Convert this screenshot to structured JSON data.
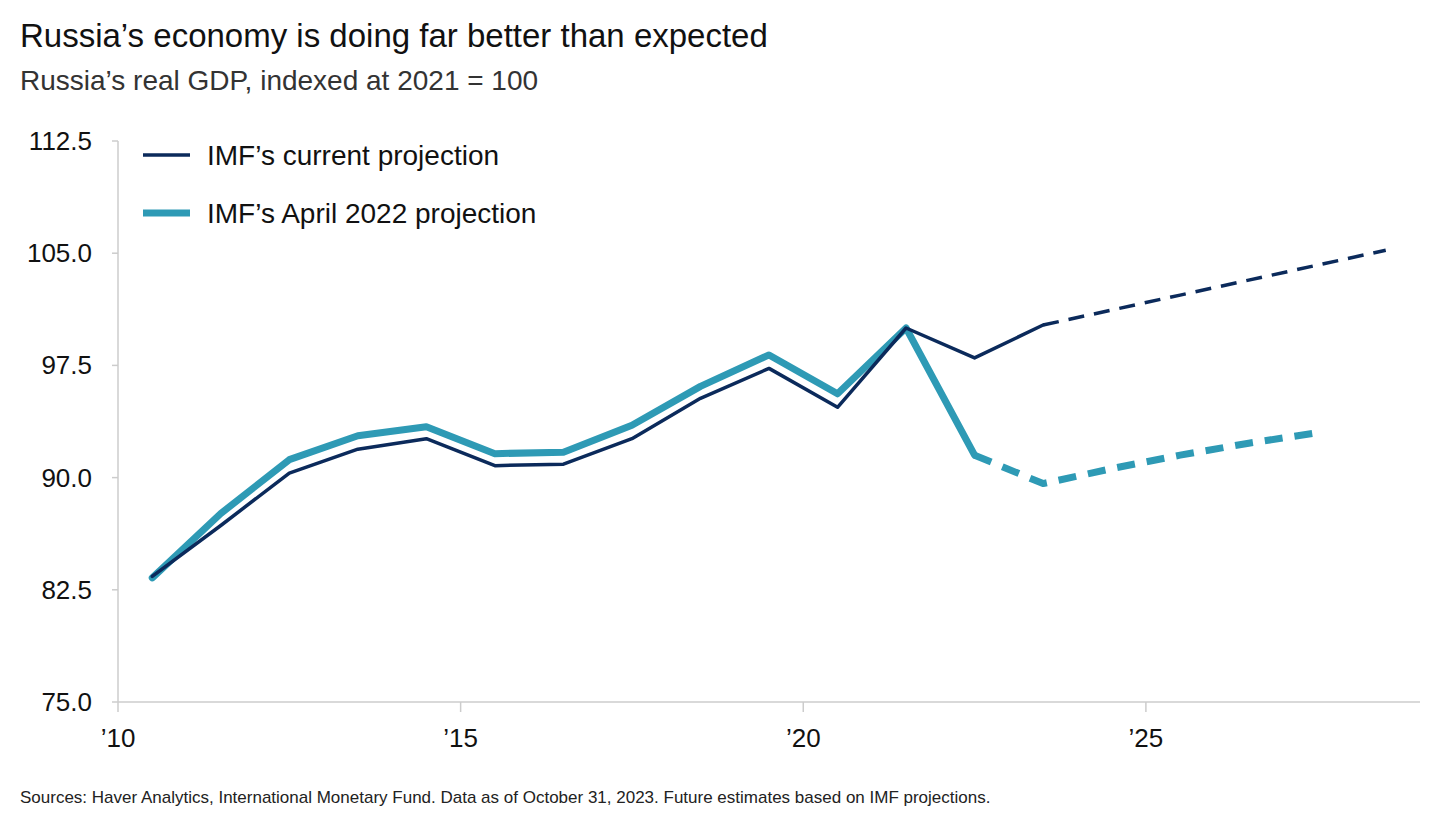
{
  "chart_data": {
    "type": "line",
    "title": "Russia’s economy is doing far better than expected",
    "subtitle": "Russia’s real GDP, indexed at 2021 = 100",
    "source": "Sources: Haver Analytics, International Monetary Fund. Data as of October 31, 2023. Future estimates based on IMF projections.",
    "x": [
      2010.5,
      2011.5,
      2012.5,
      2013.5,
      2014.5,
      2015.5,
      2016.5,
      2017.5,
      2018.5,
      2019.5,
      2020.5,
      2021.5,
      2022.5,
      2023.5,
      2024.5,
      2025.5,
      2026.5,
      2027.5,
      2028.5
    ],
    "series": [
      {
        "name": "IMF’s current projection",
        "color": "#0b2a5b",
        "line_style": "solid",
        "values": [
          83.4,
          86.8,
          90.3,
          91.9,
          92.6,
          90.8,
          90.9,
          92.6,
          95.3,
          97.3,
          94.7,
          100,
          98.0,
          100.2,
          null,
          null,
          null,
          null,
          null
        ]
      },
      {
        "name": "IMF’s April 2022 projection",
        "color": "#2e9ab5",
        "line_style": "solid",
        "values": [
          83.3,
          87.6,
          91.2,
          92.8,
          93.4,
          91.6,
          91.7,
          93.5,
          96.1,
          98.2,
          95.6,
          100,
          91.5,
          null,
          null,
          null,
          null,
          null,
          null
        ]
      },
      {
        "name": "IMF’s current projection",
        "color": "#0b2a5b",
        "line_style": "dashed",
        "values": [
          null,
          null,
          null,
          null,
          null,
          null,
          null,
          null,
          null,
          null,
          null,
          null,
          null,
          100.2,
          101.2,
          102.2,
          103.2,
          104.2,
          105.2
        ]
      },
      {
        "name": "IMF’s April 2022 projection",
        "color": "#2e9ab5",
        "line_style": "dashed",
        "values": [
          null,
          null,
          null,
          null,
          null,
          null,
          null,
          null,
          null,
          null,
          null,
          null,
          91.5,
          89.6,
          90.6,
          91.5,
          92.3,
          93.0,
          null
        ]
      }
    ],
    "xlim": [
      2010,
      2029
    ],
    "xticks": [
      {
        "value": 2010,
        "label": "’10"
      },
      {
        "value": 2015,
        "label": "’15"
      },
      {
        "value": 2020,
        "label": "’20"
      },
      {
        "value": 2025,
        "label": "’25"
      }
    ],
    "ylim": [
      75,
      112.5
    ],
    "yticks": [
      {
        "value": 75,
        "label": "75.0"
      },
      {
        "value": 82.5,
        "label": "82.5"
      },
      {
        "value": 90,
        "label": "90.0"
      },
      {
        "value": 97.5,
        "label": "97.5"
      },
      {
        "value": 105,
        "label": "105.0"
      },
      {
        "value": 112.5,
        "label": "112.5"
      }
    ],
    "grid": false,
    "legend": "top-left"
  }
}
